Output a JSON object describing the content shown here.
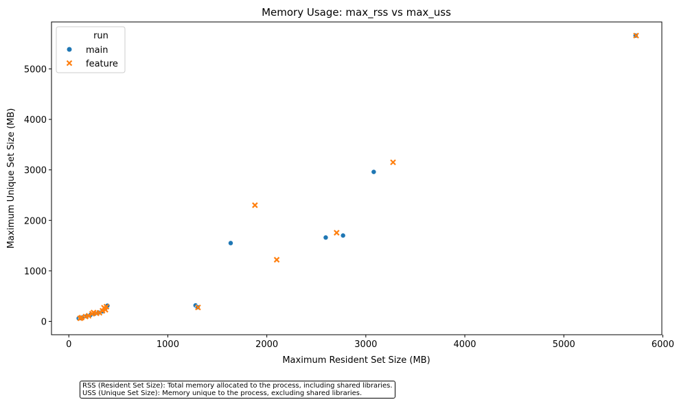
{
  "chart_data": {
    "type": "scatter",
    "title": "Memory Usage: max_rss vs max_uss",
    "xlabel": "Maximum Resident Set Size (MB)",
    "ylabel": "Maximum Unique Set Size (MB)",
    "xlim": [
      -175,
      5990
    ],
    "ylim": [
      -265,
      5930
    ],
    "xticks": [
      0,
      1000,
      2000,
      3000,
      4000,
      5000,
      6000
    ],
    "yticks": [
      0,
      1000,
      2000,
      3000,
      4000,
      5000
    ],
    "grid": false,
    "legend": {
      "title": "run",
      "placement": "top-left"
    },
    "series": [
      {
        "name": "main",
        "marker": "circle",
        "color": "#1f77b4",
        "points": [
          [
            100,
            60
          ],
          [
            120,
            65
          ],
          [
            140,
            80
          ],
          [
            180,
            100
          ],
          [
            220,
            130
          ],
          [
            260,
            150
          ],
          [
            300,
            175
          ],
          [
            340,
            200
          ],
          [
            370,
            260
          ],
          [
            390,
            310
          ],
          [
            1280,
            315
          ],
          [
            1300,
            280
          ],
          [
            1635,
            1550
          ],
          [
            2595,
            1660
          ],
          [
            2770,
            1700
          ],
          [
            3080,
            2960
          ],
          [
            5725,
            5660
          ]
        ]
      },
      {
        "name": "feature",
        "marker": "x",
        "color": "#ff7f0e",
        "points": [
          [
            115,
            60
          ],
          [
            130,
            75
          ],
          [
            170,
            95
          ],
          [
            200,
            110
          ],
          [
            235,
            150
          ],
          [
            250,
            175
          ],
          [
            280,
            160
          ],
          [
            310,
            170
          ],
          [
            340,
            210
          ],
          [
            355,
            270
          ],
          [
            370,
            230
          ],
          [
            380,
            290
          ],
          [
            1305,
            275
          ],
          [
            1880,
            2300
          ],
          [
            2100,
            1220
          ],
          [
            2705,
            1755
          ],
          [
            3275,
            3150
          ],
          [
            5730,
            5660
          ]
        ]
      }
    ]
  },
  "note": {
    "line1": "RSS (Resident Set Size): Total memory allocated to the process, including shared libraries.",
    "line2": "USS (Unique Set Size): Memory unique to the process, excluding shared libraries."
  }
}
